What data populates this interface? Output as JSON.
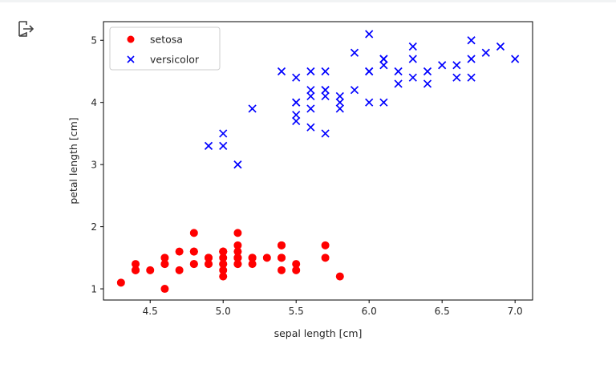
{
  "output_icon": "output-arrow-icon",
  "chart_data": {
    "type": "scatter",
    "xlabel": "sepal length [cm]",
    "ylabel": "petal length [cm]",
    "xlim": [
      4.18,
      7.12
    ],
    "ylim": [
      0.82,
      5.3
    ],
    "xticks": [
      4.5,
      5.0,
      5.5,
      6.0,
      6.5,
      7.0
    ],
    "xtick_labels": [
      "4.5",
      "5.0",
      "5.5",
      "6.0",
      "6.5",
      "7.0"
    ],
    "yticks": [
      1,
      2,
      3,
      4,
      5
    ],
    "ytick_labels": [
      "1",
      "2",
      "3",
      "4",
      "5"
    ],
    "grid": false,
    "legend_position": "upper-left",
    "series": [
      {
        "name": "setosa",
        "marker": "circle",
        "color": "#ff0000",
        "points": [
          [
            5.1,
            1.4
          ],
          [
            4.9,
            1.4
          ],
          [
            4.7,
            1.3
          ],
          [
            4.6,
            1.5
          ],
          [
            5.0,
            1.4
          ],
          [
            5.4,
            1.7
          ],
          [
            4.6,
            1.4
          ],
          [
            5.0,
            1.5
          ],
          [
            4.4,
            1.4
          ],
          [
            4.9,
            1.5
          ],
          [
            5.4,
            1.5
          ],
          [
            4.8,
            1.6
          ],
          [
            4.8,
            1.4
          ],
          [
            4.3,
            1.1
          ],
          [
            5.8,
            1.2
          ],
          [
            5.7,
            1.5
          ],
          [
            5.4,
            1.3
          ],
          [
            5.1,
            1.4
          ],
          [
            5.7,
            1.7
          ],
          [
            5.1,
            1.5
          ],
          [
            5.4,
            1.7
          ],
          [
            5.1,
            1.5
          ],
          [
            4.6,
            1.0
          ],
          [
            5.1,
            1.7
          ],
          [
            4.8,
            1.9
          ],
          [
            5.0,
            1.6
          ],
          [
            5.0,
            1.6
          ],
          [
            5.2,
            1.5
          ],
          [
            5.2,
            1.4
          ],
          [
            4.7,
            1.6
          ],
          [
            4.8,
            1.6
          ],
          [
            5.4,
            1.5
          ],
          [
            5.2,
            1.5
          ],
          [
            5.5,
            1.4
          ],
          [
            4.9,
            1.5
          ],
          [
            5.0,
            1.2
          ],
          [
            5.5,
            1.3
          ],
          [
            4.9,
            1.4
          ],
          [
            4.4,
            1.3
          ],
          [
            5.1,
            1.5
          ],
          [
            5.0,
            1.3
          ],
          [
            4.5,
            1.3
          ],
          [
            4.4,
            1.3
          ],
          [
            5.0,
            1.6
          ],
          [
            5.1,
            1.9
          ],
          [
            4.8,
            1.4
          ],
          [
            5.1,
            1.6
          ],
          [
            4.6,
            1.4
          ],
          [
            5.3,
            1.5
          ],
          [
            5.0,
            1.4
          ]
        ]
      },
      {
        "name": "versicolor",
        "marker": "x",
        "color": "#0000ff",
        "points": [
          [
            7.0,
            4.7
          ],
          [
            6.4,
            4.5
          ],
          [
            6.9,
            4.9
          ],
          [
            5.5,
            4.0
          ],
          [
            6.5,
            4.6
          ],
          [
            5.7,
            4.5
          ],
          [
            6.3,
            4.7
          ],
          [
            4.9,
            3.3
          ],
          [
            6.6,
            4.6
          ],
          [
            5.2,
            3.9
          ],
          [
            5.0,
            3.5
          ],
          [
            5.9,
            4.2
          ],
          [
            6.0,
            4.0
          ],
          [
            6.1,
            4.7
          ],
          [
            5.6,
            3.6
          ],
          [
            6.7,
            4.4
          ],
          [
            5.6,
            4.5
          ],
          [
            5.8,
            4.1
          ],
          [
            6.2,
            4.5
          ],
          [
            5.6,
            3.9
          ],
          [
            5.9,
            4.8
          ],
          [
            6.1,
            4.0
          ],
          [
            6.3,
            4.9
          ],
          [
            6.1,
            4.7
          ],
          [
            6.4,
            4.3
          ],
          [
            6.6,
            4.4
          ],
          [
            6.8,
            4.8
          ],
          [
            6.7,
            5.0
          ],
          [
            6.0,
            4.5
          ],
          [
            5.7,
            3.5
          ],
          [
            5.5,
            3.8
          ],
          [
            5.5,
            3.7
          ],
          [
            5.8,
            3.9
          ],
          [
            6.0,
            5.1
          ],
          [
            5.4,
            4.5
          ],
          [
            6.0,
            4.5
          ],
          [
            6.7,
            4.7
          ],
          [
            6.3,
            4.4
          ],
          [
            5.6,
            4.1
          ],
          [
            5.5,
            4.0
          ],
          [
            5.5,
            4.4
          ],
          [
            6.1,
            4.6
          ],
          [
            5.8,
            4.0
          ],
          [
            5.0,
            3.3
          ],
          [
            5.6,
            4.2
          ],
          [
            5.7,
            4.2
          ],
          [
            5.7,
            4.2
          ],
          [
            6.2,
            4.3
          ],
          [
            5.1,
            3.0
          ],
          [
            5.7,
            4.1
          ]
        ]
      }
    ]
  }
}
